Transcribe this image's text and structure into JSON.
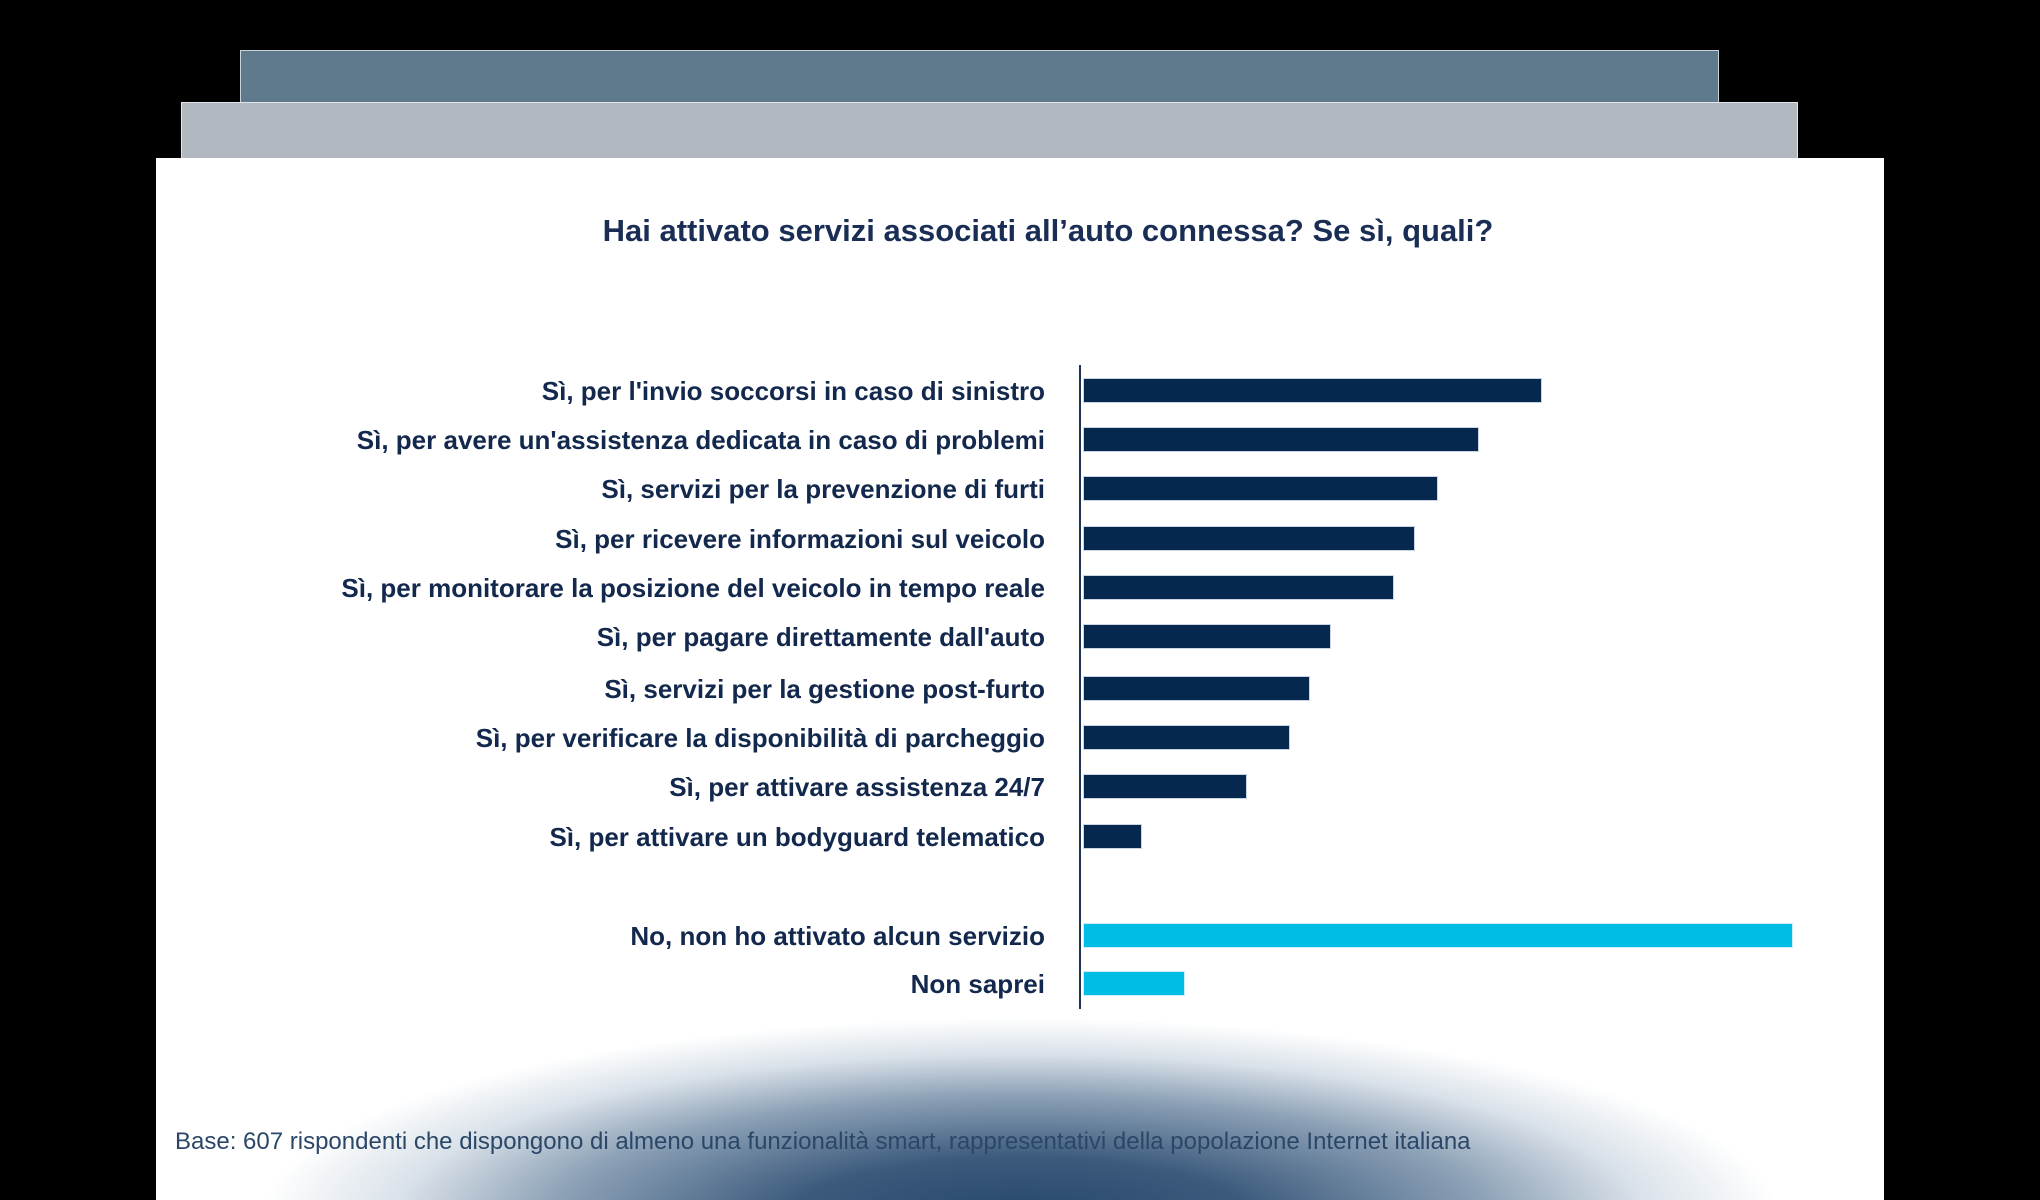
{
  "tabs": {
    "back_color": "#5e7a8c",
    "mid_color": "#b1b8bf"
  },
  "chart": {
    "title": "Hai attivato servizi associati all’auto connessa? Se sì, quali?",
    "footnote": "Base: 607 rispondenti che dispongono di almeno una funzionalità smart, rappresentativi della popolazione Internet italiana",
    "colors": {
      "yes_bars": "#06284f",
      "other_bars": "#00bde6",
      "text": "#13284d"
    },
    "rows": [
      {
        "label": "Sì, per l'invio soccorsi in caso di sinistro",
        "value": 64.5,
        "group": "yes"
      },
      {
        "label": "Sì, per avere un'assistenza dedicata in caso di problemi",
        "value": 55.6,
        "group": "yes"
      },
      {
        "label": "Sì, servizi per la prevenzione di furti",
        "value": 49.9,
        "group": "yes"
      },
      {
        "label": "Sì, per ricevere informazioni sul veicolo",
        "value": 46.6,
        "group": "yes"
      },
      {
        "label": "Sì, per monitorare la posizione del veicolo in tempo reale",
        "value": 43.6,
        "group": "yes"
      },
      {
        "label": "Sì, per pagare direttamente dall'auto",
        "value": 34.7,
        "group": "yes"
      },
      {
        "label": "Sì, servizi per la gestione post-furto",
        "value": 31.8,
        "group": "yes"
      },
      {
        "label": "Sì, per verificare la disponibilità di parcheggio",
        "value": 29.0,
        "group": "yes"
      },
      {
        "label": "Sì, per attivare assistenza 24/7",
        "value": 22.9,
        "group": "yes"
      },
      {
        "label": "Sì, per attivare un bodyguard telematico",
        "value": 8.1,
        "group": "yes"
      },
      {
        "label": "No, non ho attivato alcun servizio",
        "value": 100,
        "group": "other"
      },
      {
        "label": "Non saprei",
        "value": 14.1,
        "group": "other"
      }
    ]
  },
  "chart_data": {
    "type": "bar",
    "orientation": "horizontal",
    "title": "Hai attivato servizi associati all’auto connessa? Se sì, quali?",
    "xlabel": "",
    "ylabel": "",
    "value_units": "relative bar length (% of longest bar); no numeric labels or axis ticks shown",
    "categories": [
      "Sì, per l'invio soccorsi in caso di sinistro",
      "Sì, per avere un'assistenza dedicata in caso di problemi",
      "Sì, servizi per la prevenzione di furti",
      "Sì, per ricevere informazioni sul veicolo",
      "Sì, per monitorare la posizione del veicolo in tempo reale",
      "Sì, per pagare direttamente dall'auto",
      "Sì, servizi per la gestione post-furto",
      "Sì, per verificare la disponibilità di parcheggio",
      "Sì, per attivare assistenza 24/7",
      "Sì, per attivare un bodyguard telematico",
      "No, non ho attivato alcun servizio",
      "Non saprei"
    ],
    "values": [
      64.5,
      55.6,
      49.9,
      46.6,
      43.6,
      34.7,
      31.8,
      29.0,
      22.9,
      8.1,
      100,
      14.1
    ],
    "series_colors": [
      "#06284f",
      "#06284f",
      "#06284f",
      "#06284f",
      "#06284f",
      "#06284f",
      "#06284f",
      "#06284f",
      "#06284f",
      "#06284f",
      "#00bde6",
      "#00bde6"
    ],
    "xlim": [
      0,
      100
    ],
    "grid": false,
    "legend": null,
    "annotations": [
      "Base: 607 rispondenti che dispongono di almeno una funzionalità smart, rappresentativi della popolazione Internet italiana"
    ]
  }
}
